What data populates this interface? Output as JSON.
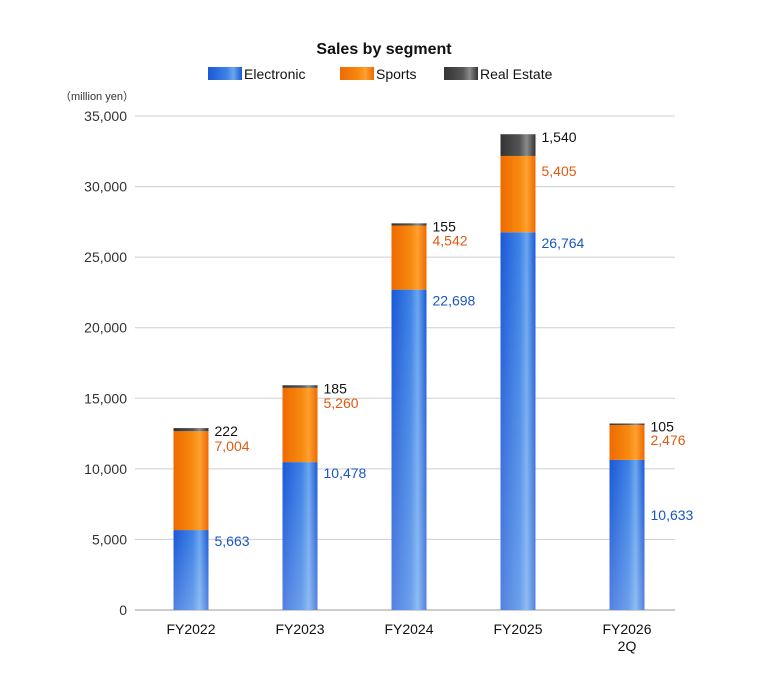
{
  "chart_data": {
    "type": "bar",
    "stacked": true,
    "title": "Sales by segment",
    "unit_label": "（million yen）",
    "categories": [
      {
        "line1": "FY2022",
        "line2": ""
      },
      {
        "line1": "FY2023",
        "line2": ""
      },
      {
        "line1": "FY2024",
        "line2": ""
      },
      {
        "line1": "FY2025",
        "line2": ""
      },
      {
        "line1": "FY2026",
        "line2": "2Q"
      }
    ],
    "series": [
      {
        "name": "Electronic",
        "values": [
          5663,
          10478,
          22698,
          26764,
          10633
        ],
        "labels": [
          "5,663",
          "10,478",
          "22,698",
          "26,764",
          "10,633"
        ],
        "color": "#1f5fd8",
        "label_color": "#1a56c4"
      },
      {
        "name": "Sports",
        "values": [
          7004,
          5260,
          4542,
          5405,
          2476
        ],
        "labels": [
          "7,004",
          "5,260",
          "4,542",
          "5,405",
          "2,476"
        ],
        "color": "#f07a00",
        "label_color": "#e05a10"
      },
      {
        "name": "Real Estate",
        "values": [
          222,
          185,
          155,
          1540,
          105
        ],
        "labels": [
          "222",
          "185",
          "155",
          "1,540",
          "105"
        ],
        "color": "#3a3a3a",
        "label_color": "#111111"
      }
    ],
    "yticks": [
      "0",
      "5,000",
      "10,000",
      "15,000",
      "20,000",
      "25,000",
      "30,000",
      "35,000"
    ],
    "ylim": [
      0,
      35000
    ],
    "grid": true,
    "legend_position": "top"
  }
}
